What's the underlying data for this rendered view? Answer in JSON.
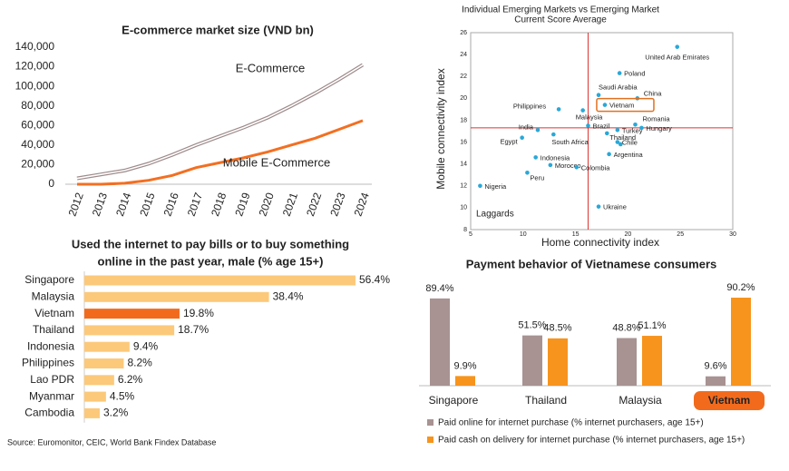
{
  "chart_data": [
    {
      "type": "line",
      "title": "E-commerce market size (VND bn)",
      "categories": [
        "2012",
        "2013",
        "2014",
        "2015",
        "2016",
        "2017",
        "2018",
        "2019",
        "2020",
        "2021",
        "2022",
        "2023",
        "2024"
      ],
      "series": [
        {
          "name": "E-Commerce",
          "color": "#9e8a8a",
          "values": [
            6000,
            10000,
            14000,
            21000,
            30000,
            40000,
            49000,
            58000,
            68000,
            80000,
            93000,
            107000,
            122000
          ]
        },
        {
          "name": "Mobile E-Commerce",
          "color": "#f36f21",
          "values": [
            0,
            0,
            1000,
            4000,
            9000,
            17000,
            22000,
            27000,
            33000,
            40000,
            47000,
            56000,
            65000
          ]
        }
      ],
      "ylim": [
        0,
        140000
      ],
      "yticks": [
        0,
        {
          "value": 20000,
          "label": "20,000"
        },
        {
          "value": 40000,
          "label": "40,000"
        },
        {
          "value": 60000,
          "label": "60,000"
        },
        {
          "value": 80000,
          "label": "80,000"
        },
        {
          "value": 100000,
          "label": "100,000"
        },
        {
          "value": 120000,
          "label": "120,000"
        },
        {
          "value": 140000,
          "label": "140,000"
        }
      ]
    },
    {
      "type": "bar",
      "orientation": "horizontal",
      "title": [
        "Used the internet to pay bills or to buy something",
        "online in the past year, male (% age 15+)"
      ],
      "categories": [
        "Singapore",
        "Malaysia",
        "Vietnam",
        "Thailand",
        "Indonesia",
        "Philippines",
        "Lao PDR",
        "Myanmar",
        "Cambodia"
      ],
      "values": [
        56.4,
        38.4,
        19.8,
        18.7,
        9.4,
        8.2,
        6.2,
        4.5,
        3.2
      ],
      "value_labels": [
        "56.4%",
        "38.4%",
        "19.8%",
        "18.7%",
        "9.4%",
        "8.2%",
        "6.2%",
        "4.5%",
        "3.2%"
      ],
      "color": "#fcc97a",
      "highlight": 2,
      "highlight_color": "#f26b1d"
    },
    {
      "type": "scatter",
      "title": [
        "Individual Emerging Markets vs Emerging Market",
        "Current Score Average"
      ],
      "xlabel": "Home connectivity index",
      "ylabel": "Mobile connectivity index",
      "xlim": [
        5,
        30
      ],
      "xticks": [
        5,
        10,
        15,
        20,
        25,
        30
      ],
      "ylim": [
        8,
        26
      ],
      "yticks": [
        8,
        10,
        12,
        14,
        16,
        18,
        20,
        22,
        24,
        26
      ],
      "color": "#29a8d8",
      "reference_color": "#e03030",
      "reference_x": 16.2,
      "reference_y": 17.3,
      "annotation": "Laggards",
      "highlight": 4,
      "highlight_color": "#e07020",
      "points": [
        {
          "label": "United Arab Emirates",
          "x": 24.7,
          "y": 24.7
        },
        {
          "label": "Poland",
          "x": 19.2,
          "y": 22.3
        },
        {
          "label": "Saudi Arabia",
          "x": 17.2,
          "y": 20.3
        },
        {
          "label": "China",
          "x": 20.9,
          "y": 20.0
        },
        {
          "label": "Vietnam",
          "x": 17.8,
          "y": 19.4
        },
        {
          "label": "Philippines",
          "x": 13.4,
          "y": 19.0
        },
        {
          "label": "Malaysia",
          "x": 15.7,
          "y": 18.9
        },
        {
          "label": "Brazil",
          "x": 16.2,
          "y": 17.5
        },
        {
          "label": "Romania",
          "x": 20.7,
          "y": 17.6
        },
        {
          "label": "India",
          "x": 11.4,
          "y": 17.1
        },
        {
          "label": "Turkey",
          "x": 19.0,
          "y": 17.1
        },
        {
          "label": "Hungary",
          "x": 21.3,
          "y": 17.3
        },
        {
          "label": "Thailand",
          "x": 18.0,
          "y": 16.8
        },
        {
          "label": "Egypt",
          "x": 9.9,
          "y": 16.4
        },
        {
          "label": "South Africa",
          "x": 12.9,
          "y": 16.7
        },
        {
          "label": "Chile",
          "x": 19.0,
          "y": 16.0
        },
        {
          "label": null,
          "x": 19.3,
          "y": 15.8
        },
        {
          "label": "Argentina",
          "x": 18.2,
          "y": 14.9
        },
        {
          "label": "Indonesia",
          "x": 11.2,
          "y": 14.6
        },
        {
          "label": "Morocco",
          "x": 12.6,
          "y": 13.9
        },
        {
          "label": "Colombia",
          "x": 15.1,
          "y": 13.7
        },
        {
          "label": "Peru",
          "x": 10.4,
          "y": 13.2
        },
        {
          "label": "Nigeria",
          "x": 5.9,
          "y": 12.0
        },
        {
          "label": "Ukraine",
          "x": 17.2,
          "y": 10.1
        }
      ]
    },
    {
      "type": "bar",
      "orientation": "vertical",
      "title": "Payment behavior of Vietnamese consumers",
      "categories": [
        "Singapore",
        "Thailand",
        "Malaysia",
        "Vietnam"
      ],
      "highlight": 3,
      "highlight_color": "#f26b1d",
      "series": [
        {
          "name": "Paid online for internet purchase (% internet purchasers, age 15+)",
          "color": "#a89292",
          "values": [
            89.4,
            51.5,
            48.8,
            9.6
          ],
          "value_labels": [
            "89.4%",
            "51.5%",
            "48.8%",
            "9.6%"
          ]
        },
        {
          "name": "Paid cash on delivery for internet purchase (% internet purchasers, age 15+)",
          "color": "#f7941d",
          "values": [
            9.9,
            48.5,
            51.1,
            90.2
          ],
          "value_labels": [
            "9.9%",
            "48.5%",
            "51.1%",
            "90.2%"
          ]
        }
      ]
    }
  ],
  "source": "Source: Euromonitor, CEIC, World Bank Findex Database"
}
